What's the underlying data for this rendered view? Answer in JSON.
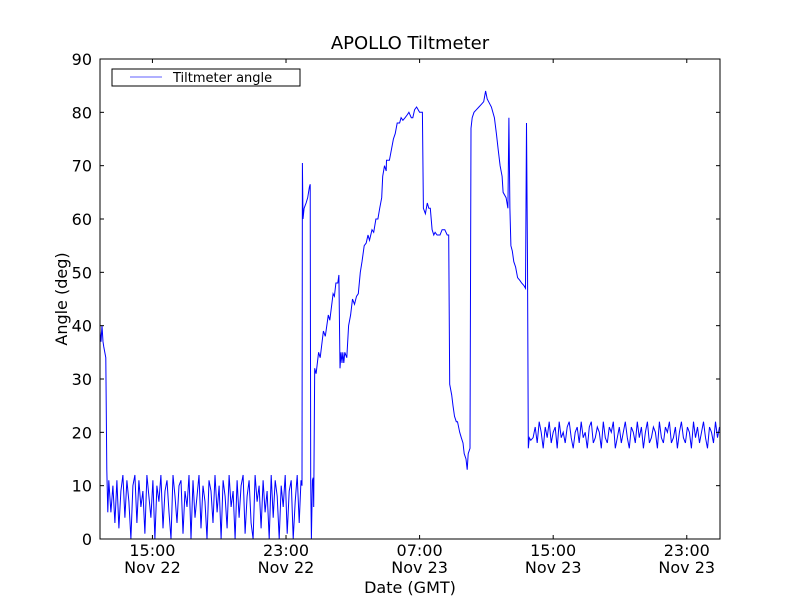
{
  "chart_data": {
    "type": "line",
    "title": "APOLLO Tiltmeter",
    "xlabel": "Date (GMT)",
    "ylabel": "Angle (deg)",
    "x_units": "hours since Nov 22 00:00 GMT",
    "xlim": [
      11.86,
      48.99
    ],
    "ylim": [
      0,
      90
    ],
    "yticks": [
      0,
      10,
      20,
      30,
      40,
      50,
      60,
      70,
      80,
      90
    ],
    "xticks": [
      {
        "value": 15,
        "time": "15:00",
        "date": "Nov 22"
      },
      {
        "value": 23,
        "time": "23:00",
        "date": "Nov 22"
      },
      {
        "value": 31,
        "time": "07:00",
        "date": "Nov 23"
      },
      {
        "value": 39,
        "time": "15:00",
        "date": "Nov 23"
      },
      {
        "value": 47,
        "time": "23:00",
        "date": "Nov 23"
      }
    ],
    "legend": {
      "placement": "top-left",
      "entries": [
        "Tiltmeter angle"
      ]
    },
    "grid": false,
    "series": [
      {
        "name": "Tiltmeter angle",
        "color": "#0000ff",
        "pieces": [
          {
            "points": [
              [
                11.86,
                39
              ],
              [
                11.92,
                37
              ],
              [
                11.98,
                40
              ],
              [
                12.04,
                37
              ],
              [
                12.09,
                36
              ],
              [
                12.21,
                34
              ],
              [
                12.27,
                13
              ],
              [
                12.33,
                5
              ]
            ]
          },
          {
            "x0": 12.39,
            "dx": 0.12,
            "y": [
              11,
              5,
              10,
              3,
              11,
              2,
              9,
              12,
              4,
              11,
              7,
              0,
              10,
              12,
              3,
              11,
              6,
              9,
              1,
              12,
              8,
              4,
              11,
              0,
              10,
              7,
              12,
              2,
              9,
              11,
              5,
              0,
              12,
              8,
              3,
              10,
              11,
              1,
              9,
              6,
              12,
              0,
              11,
              4,
              8,
              12,
              2,
              10,
              7,
              0,
              11,
              9,
              3,
              12,
              5,
              10,
              0,
              11,
              8,
              2,
              12,
              6,
              9,
              0,
              11,
              4,
              10,
              12,
              1,
              8,
              11,
              3,
              0,
              12,
              7,
              10,
              2,
              11,
              5,
              9,
              0,
              12,
              4,
              11,
              8,
              0,
              10,
              6,
              12,
              1,
              9,
              11,
              0,
              7,
              12,
              3
            ]
          },
          {
            "points": [
              [
                23.9,
                11
              ],
              [
                23.96,
                10
              ],
              [
                23.98,
                70.5
              ],
              [
                24.02,
                60
              ],
              [
                24.08,
                62
              ],
              [
                24.2,
                63
              ],
              [
                24.3,
                64
              ],
              [
                24.4,
                66
              ],
              [
                24.45,
                66.5
              ],
              [
                24.48,
                11
              ],
              [
                24.52,
                0
              ],
              [
                24.58,
                11
              ],
              [
                24.63,
                11.5
              ],
              [
                24.66,
                6
              ],
              [
                24.72,
                32
              ],
              [
                24.8,
                31
              ],
              [
                24.95,
                35
              ],
              [
                25.05,
                34
              ],
              [
                25.24,
                39
              ],
              [
                25.35,
                38
              ],
              [
                25.53,
                42
              ],
              [
                25.62,
                41
              ],
              [
                25.82,
                46
              ],
              [
                25.9,
                45.5
              ],
              [
                25.99,
                48
              ],
              [
                26.1,
                48
              ],
              [
                26.17,
                49.5
              ],
              [
                26.23,
                32
              ],
              [
                26.29,
                35
              ],
              [
                26.35,
                33
              ],
              [
                26.4,
                35
              ],
              [
                26.46,
                33
              ],
              [
                26.52,
                35
              ],
              [
                26.64,
                34
              ],
              [
                26.75,
                40
              ],
              [
                26.87,
                42
              ],
              [
                26.98,
                45
              ],
              [
                27.1,
                44
              ],
              [
                27.22,
                45.5
              ],
              [
                27.33,
                46
              ],
              [
                27.45,
                50
              ],
              [
                27.55,
                52
              ],
              [
                27.68,
                55
              ],
              [
                27.8,
                55.5
              ],
              [
                27.91,
                57
              ],
              [
                28.0,
                56
              ],
              [
                28.15,
                58
              ],
              [
                28.25,
                57.5
              ],
              [
                28.38,
                60
              ],
              [
                28.5,
                60
              ],
              [
                28.61,
                62
              ],
              [
                28.73,
                64
              ],
              [
                28.79,
                68
              ],
              [
                28.9,
                70
              ],
              [
                29.0,
                69
              ],
              [
                29.02,
                71
              ],
              [
                29.19,
                71
              ],
              [
                29.31,
                73
              ],
              [
                29.43,
                75
              ],
              [
                29.54,
                76
              ],
              [
                29.66,
                78
              ],
              [
                29.8,
                78
              ],
              [
                29.89,
                79
              ],
              [
                30.0,
                78.5
              ],
              [
                30.13,
                79
              ],
              [
                30.25,
                79.5
              ],
              [
                30.36,
                80
              ],
              [
                30.5,
                79
              ],
              [
                30.59,
                79
              ],
              [
                30.7,
                80.5
              ],
              [
                30.82,
                81
              ],
              [
                31.0,
                80
              ],
              [
                31.17,
                80
              ],
              [
                31.23,
                62
              ],
              [
                31.35,
                61
              ],
              [
                31.46,
                63
              ],
              [
                31.55,
                62
              ],
              [
                31.64,
                62
              ],
              [
                31.75,
                58
              ],
              [
                31.85,
                57
              ],
              [
                31.93,
                57.5
              ],
              [
                32.05,
                57
              ],
              [
                32.22,
                57
              ],
              [
                32.35,
                58
              ],
              [
                32.51,
                58
              ],
              [
                32.65,
                57
              ],
              [
                32.74,
                57
              ],
              [
                32.8,
                29
              ],
              [
                32.92,
                27
              ],
              [
                33.0,
                25
              ],
              [
                33.09,
                23
              ],
              [
                33.2,
                22
              ],
              [
                33.27,
                22
              ],
              [
                33.4,
                20
              ],
              [
                33.5,
                19
              ],
              [
                33.6,
                18
              ],
              [
                33.67,
                16
              ],
              [
                33.78,
                15
              ],
              [
                33.85,
                13
              ],
              [
                33.91,
                16
              ],
              [
                34.02,
                17
              ],
              [
                34.08,
                77
              ],
              [
                34.15,
                79
              ],
              [
                34.26,
                80
              ],
              [
                34.4,
                80.5
              ],
              [
                34.55,
                81
              ],
              [
                34.7,
                81.5
              ],
              [
                34.84,
                82
              ],
              [
                34.95,
                84
              ],
              [
                35.05,
                82.5
              ],
              [
                35.13,
                82
              ],
              [
                35.3,
                81
              ],
              [
                35.48,
                79
              ],
              [
                35.6,
                76
              ],
              [
                35.71,
                73
              ],
              [
                35.82,
                70
              ],
              [
                35.94,
                68
              ],
              [
                36.0,
                65
              ],
              [
                36.18,
                64
              ],
              [
                36.29,
                62
              ],
              [
                36.35,
                79
              ],
              [
                36.41,
                62
              ],
              [
                36.47,
                55
              ],
              [
                36.55,
                54
              ],
              [
                36.64,
                52
              ],
              [
                36.75,
                51
              ],
              [
                36.87,
                49
              ],
              [
                37.0,
                48.5
              ],
              [
                37.11,
                48
              ],
              [
                37.25,
                47.5
              ],
              [
                37.34,
                47
              ],
              [
                37.4,
                78
              ],
              [
                37.46,
                52
              ],
              [
                37.51,
                17
              ],
              [
                37.57,
                19
              ],
              [
                37.66,
                18.5
              ]
            ]
          },
          {
            "x0": 37.8,
            "dx": 0.12,
            "y": [
              19,
              21,
              18,
              22,
              20,
              17,
              21,
              19,
              22,
              18,
              20,
              21,
              17,
              22,
              19,
              20,
              18,
              21,
              22,
              19,
              17,
              20,
              21,
              18,
              22,
              19,
              20,
              17,
              21,
              22,
              18,
              19,
              21,
              20,
              17,
              22,
              19,
              18,
              21,
              20,
              22,
              17,
              19,
              21,
              18,
              20,
              22,
              19,
              17,
              21,
              20,
              18,
              22,
              19,
              21,
              17,
              20,
              22,
              18,
              19,
              21,
              20,
              17,
              22,
              19,
              18,
              21,
              20,
              22,
              18,
              19,
              21,
              17,
              20,
              22,
              19,
              18,
              21,
              20,
              17,
              22,
              19,
              21,
              18,
              20,
              22,
              19,
              17,
              21,
              20,
              18,
              22,
              19,
              21
            ]
          }
        ]
      }
    ]
  }
}
